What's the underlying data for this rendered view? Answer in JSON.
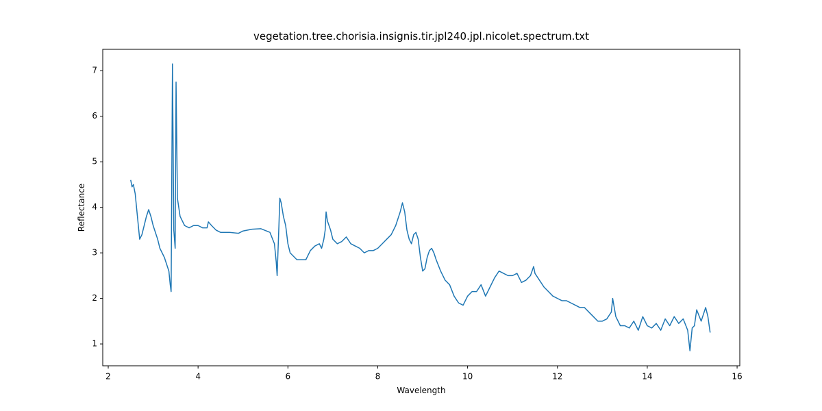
{
  "chart_data": {
    "type": "line",
    "title": "vegetation.tree.chorisia.insignis.tir.jpl240.jpl.nicolet.spectrum.txt",
    "x_label": "Wavelength",
    "y_label": "Reflectance",
    "xlim": [
      1.878,
      16.06
    ],
    "ylim": [
      0.52,
      7.47
    ],
    "xticks": [
      2,
      4,
      6,
      8,
      10,
      12,
      14,
      16
    ],
    "yticks": [
      1,
      2,
      3,
      4,
      5,
      6,
      7
    ],
    "series": [
      {
        "color": "#1f77b4",
        "x": [
          2.5,
          2.53,
          2.56,
          2.6,
          2.65,
          2.7,
          2.75,
          2.8,
          2.85,
          2.9,
          2.95,
          3.0,
          3.05,
          3.1,
          3.15,
          3.2,
          3.25,
          3.3,
          3.35,
          3.38,
          3.4,
          3.43,
          3.46,
          3.49,
          3.51,
          3.54,
          3.6,
          3.7,
          3.8,
          3.9,
          4.0,
          4.1,
          4.2,
          4.23,
          4.3,
          4.4,
          4.5,
          4.7,
          4.9,
          5.0,
          5.2,
          5.4,
          5.6,
          5.7,
          5.74,
          5.76,
          5.8,
          5.82,
          5.85,
          5.9,
          5.95,
          6.0,
          6.05,
          6.1,
          6.2,
          6.3,
          6.4,
          6.5,
          6.6,
          6.7,
          6.75,
          6.8,
          6.83,
          6.85,
          6.88,
          6.95,
          7.0,
          7.1,
          7.2,
          7.3,
          7.4,
          7.5,
          7.6,
          7.7,
          7.8,
          7.9,
          8.0,
          8.1,
          8.2,
          8.3,
          8.4,
          8.5,
          8.55,
          8.6,
          8.65,
          8.7,
          8.75,
          8.8,
          8.85,
          8.9,
          8.95,
          9.0,
          9.05,
          9.1,
          9.15,
          9.2,
          9.25,
          9.3,
          9.4,
          9.5,
          9.6,
          9.7,
          9.8,
          9.9,
          10.0,
          10.1,
          10.2,
          10.3,
          10.4,
          10.5,
          10.6,
          10.7,
          10.8,
          10.9,
          11.0,
          11.1,
          11.2,
          11.3,
          11.4,
          11.47,
          11.5,
          11.6,
          11.7,
          11.8,
          11.9,
          12.0,
          12.1,
          12.2,
          12.3,
          12.4,
          12.5,
          12.6,
          12.7,
          12.8,
          12.9,
          13.0,
          13.1,
          13.2,
          13.23,
          13.3,
          13.4,
          13.5,
          13.6,
          13.7,
          13.8,
          13.9,
          14.0,
          14.1,
          14.2,
          14.3,
          14.4,
          14.5,
          14.6,
          14.7,
          14.8,
          14.9,
          14.95,
          15.0,
          15.05,
          15.1,
          15.2,
          15.3,
          15.35,
          15.4
        ],
        "values": [
          4.6,
          4.45,
          4.5,
          4.3,
          3.8,
          3.3,
          3.4,
          3.6,
          3.8,
          3.95,
          3.8,
          3.6,
          3.45,
          3.3,
          3.1,
          3.0,
          2.9,
          2.75,
          2.6,
          2.3,
          2.15,
          7.15,
          3.5,
          3.1,
          6.75,
          4.2,
          3.8,
          3.6,
          3.55,
          3.6,
          3.6,
          3.55,
          3.55,
          3.68,
          3.6,
          3.5,
          3.45,
          3.45,
          3.43,
          3.48,
          3.52,
          3.53,
          3.45,
          3.2,
          2.8,
          2.5,
          3.6,
          4.2,
          4.1,
          3.8,
          3.6,
          3.2,
          3.0,
          2.95,
          2.85,
          2.85,
          2.85,
          3.05,
          3.15,
          3.2,
          3.1,
          3.3,
          3.5,
          3.9,
          3.7,
          3.5,
          3.3,
          3.2,
          3.25,
          3.35,
          3.2,
          3.15,
          3.1,
          3.0,
          3.05,
          3.05,
          3.1,
          3.2,
          3.3,
          3.4,
          3.6,
          3.9,
          4.1,
          3.9,
          3.5,
          3.3,
          3.2,
          3.4,
          3.45,
          3.3,
          2.9,
          2.6,
          2.65,
          2.9,
          3.05,
          3.1,
          3.0,
          2.85,
          2.6,
          2.4,
          2.3,
          2.05,
          1.9,
          1.85,
          2.05,
          2.15,
          2.15,
          2.3,
          2.05,
          2.25,
          2.45,
          2.6,
          2.55,
          2.5,
          2.5,
          2.55,
          2.35,
          2.4,
          2.5,
          2.7,
          2.55,
          2.4,
          2.25,
          2.15,
          2.05,
          2.0,
          1.95,
          1.95,
          1.9,
          1.85,
          1.8,
          1.8,
          1.7,
          1.6,
          1.5,
          1.5,
          1.55,
          1.7,
          2.0,
          1.6,
          1.4,
          1.4,
          1.35,
          1.5,
          1.3,
          1.6,
          1.4,
          1.35,
          1.45,
          1.3,
          1.55,
          1.4,
          1.6,
          1.45,
          1.55,
          1.3,
          0.85,
          1.35,
          1.4,
          1.75,
          1.5,
          1.8,
          1.6,
          1.25
        ]
      }
    ]
  }
}
